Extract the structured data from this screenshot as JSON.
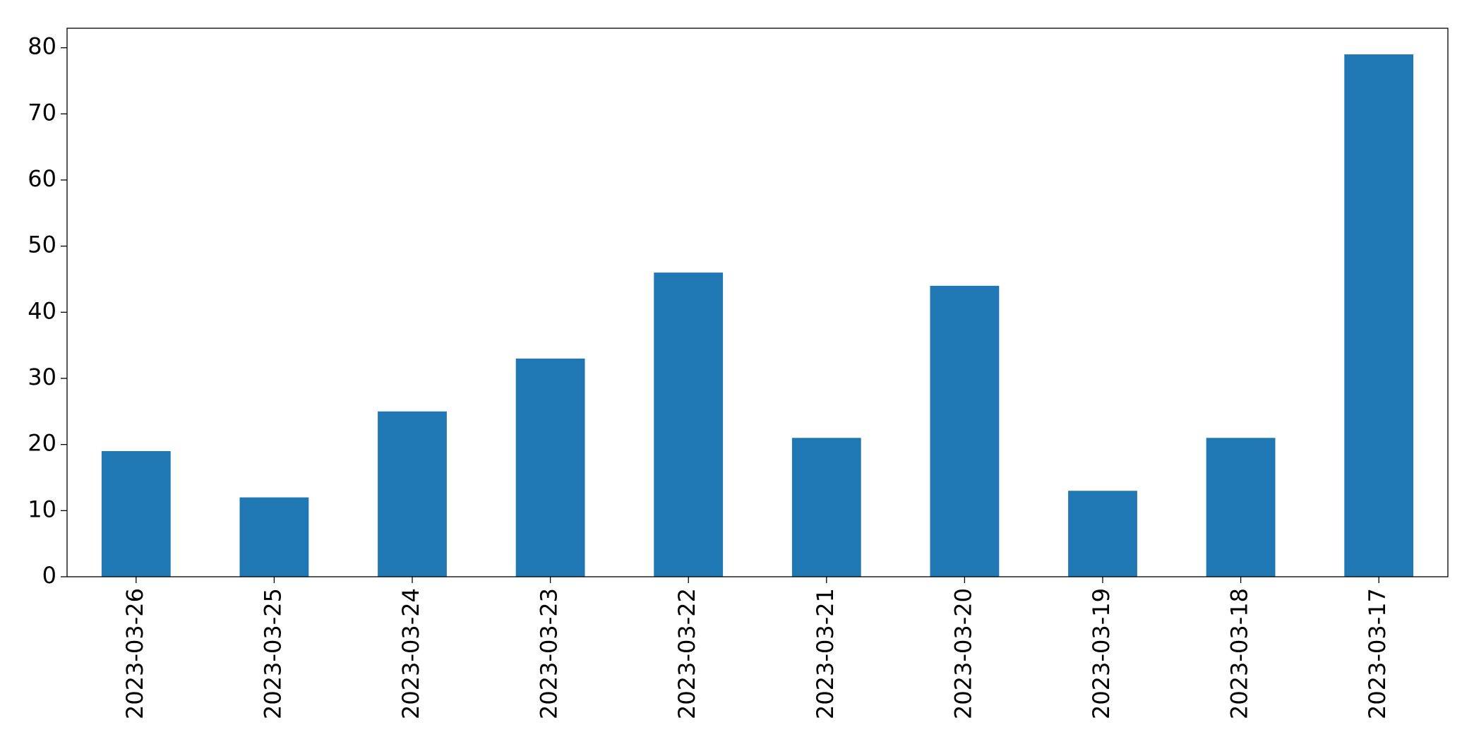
{
  "chart_data": {
    "type": "bar",
    "categories": [
      "2023-03-26",
      "2023-03-25",
      "2023-03-24",
      "2023-03-23",
      "2023-03-22",
      "2023-03-21",
      "2023-03-20",
      "2023-03-19",
      "2023-03-18",
      "2023-03-17"
    ],
    "values": [
      19,
      12,
      25,
      33,
      46,
      21,
      44,
      13,
      21,
      79
    ],
    "color": "#1f77b4",
    "ylim": [
      0,
      82.95
    ],
    "yticks": [
      0,
      10,
      20,
      30,
      40,
      50,
      60,
      70,
      80
    ],
    "grid": false
  }
}
